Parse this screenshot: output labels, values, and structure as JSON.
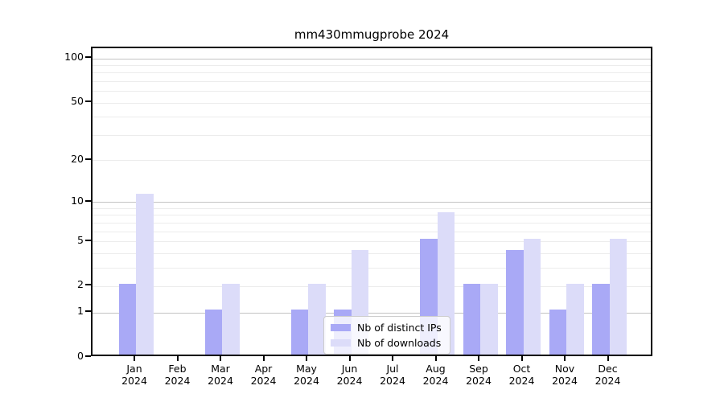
{
  "figure": {
    "title": "mm430mmugprobe 2024"
  },
  "legend": {
    "items": [
      {
        "label": "Nb of distinct IPs",
        "color": "#a9a9f6"
      },
      {
        "label": "Nb of downloads",
        "color": "#dcdcf9"
      }
    ]
  },
  "colors": {
    "bar_distinct_ips": "#a9a9f6",
    "bar_downloads": "#dcdcf9",
    "grid_major": "#c3c3c3",
    "grid_minor": "#ececec",
    "axis": "#000000"
  },
  "chart_data": {
    "type": "bar",
    "title": "mm430mmugprobe 2024",
    "categories": [
      "Jan 2024",
      "Feb 2024",
      "Mar 2024",
      "Apr 2024",
      "May 2024",
      "Jun 2024",
      "Jul 2024",
      "Aug 2024",
      "Sep 2024",
      "Oct 2024",
      "Nov 2024",
      "Dec 2024"
    ],
    "series": [
      {
        "name": "Nb of distinct IPs",
        "color": "#a9a9f6",
        "values": [
          2,
          0,
          1,
          0,
          1,
          1,
          0,
          5,
          2,
          4,
          1,
          2
        ]
      },
      {
        "name": "Nb of downloads",
        "color": "#dcdcf9",
        "values": [
          11,
          0,
          2,
          0,
          2,
          4,
          0,
          8,
          2,
          5,
          2,
          5
        ]
      }
    ],
    "xlabel": "",
    "ylabel": "",
    "yscale": "log(value+1)",
    "ylim": [
      0,
      120
    ],
    "ytick_values": [
      0,
      1,
      2,
      5,
      10,
      20,
      50,
      100
    ],
    "ytick_labels": [
      "0",
      "1",
      "2",
      "5",
      "10",
      "20",
      "50",
      "100"
    ],
    "minor_gridline_values": [
      3,
      4,
      6,
      7,
      8,
      9,
      30,
      40,
      60,
      70,
      80,
      90
    ],
    "grid": "on",
    "legend_position": "lower center inside plot"
  }
}
